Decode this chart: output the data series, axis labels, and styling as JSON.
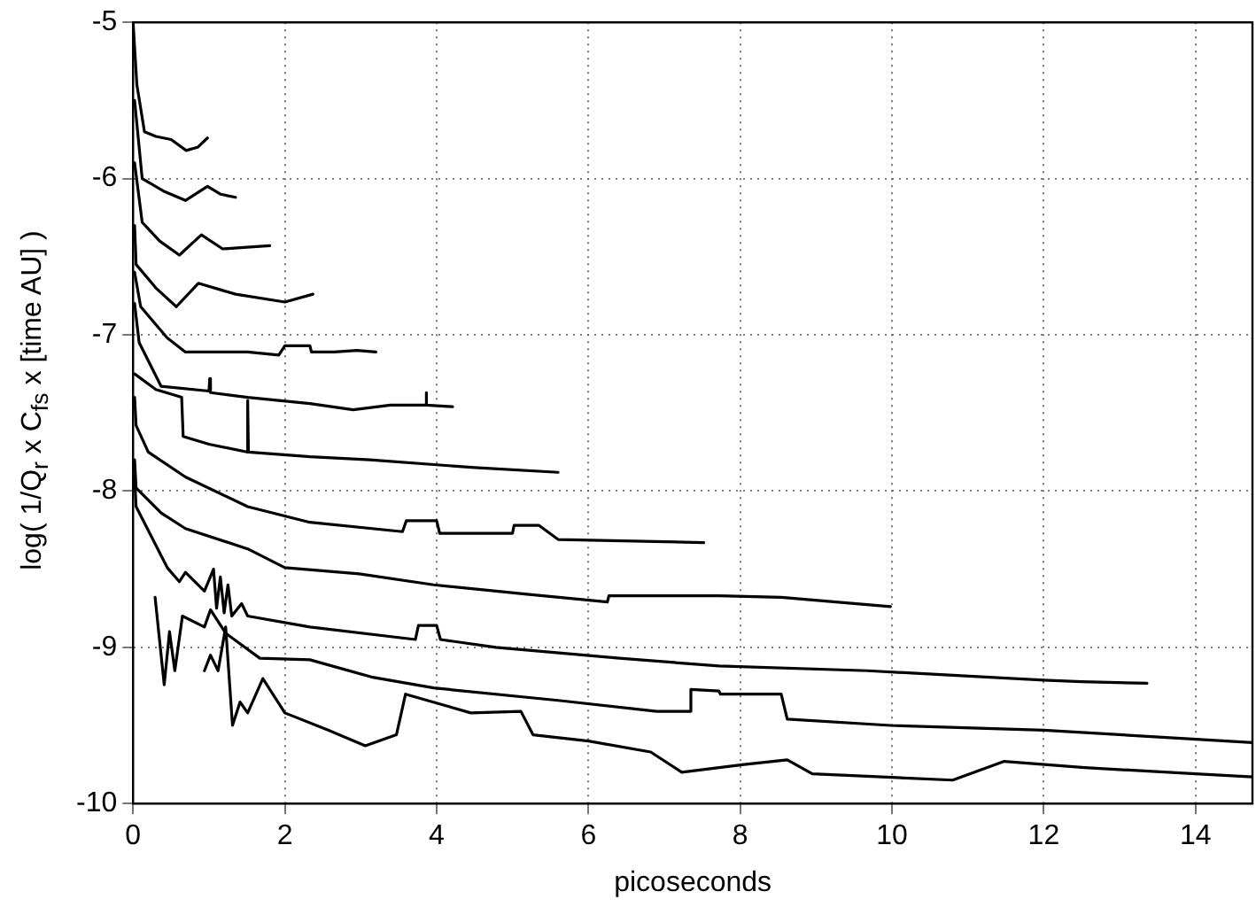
{
  "chart_data": {
    "type": "line",
    "xlabel": "picoseconds",
    "ylabel": "log( 1/Q$_{r}$ x C$_{fs}$  x  [time AU] )",
    "xlim": [
      0,
      14.75
    ],
    "xticks": [
      0,
      2,
      4,
      6,
      8,
      10,
      12,
      14
    ],
    "ylim": [
      -10,
      -5
    ],
    "yticks": [
      -10,
      -9,
      -8,
      -7,
      -6,
      -5
    ],
    "grid": true,
    "marker": "none",
    "line_style": "solid",
    "series": [
      {
        "color": "#000000",
        "x": [
          0,
          0.05,
          0.15,
          0.3,
          0.5,
          0.7,
          0.85,
          0.98
        ],
        "values": [
          -5.0,
          -5.4,
          -5.7,
          -5.73,
          -5.75,
          -5.82,
          -5.8,
          -5.74
        ]
      },
      {
        "color": "#000000",
        "x": [
          0.02,
          0.12,
          0.4,
          0.69,
          0.98,
          1.15,
          1.35
        ],
        "values": [
          -5.5,
          -6.0,
          -6.08,
          -6.14,
          -6.05,
          -6.1,
          -6.12
        ]
      },
      {
        "color": "#000000",
        "x": [
          0.02,
          0.12,
          0.35,
          0.61,
          0.9,
          1.18,
          1.5,
          1.8
        ],
        "values": [
          -5.9,
          -6.28,
          -6.4,
          -6.49,
          -6.36,
          -6.45,
          -6.44,
          -6.43
        ]
      },
      {
        "color": "#000000",
        "x": [
          0.02,
          0.04,
          0.3,
          0.57,
          0.86,
          1.35,
          2.0,
          2.37
        ],
        "values": [
          -6.3,
          -6.55,
          -6.7,
          -6.82,
          -6.67,
          -6.74,
          -6.79,
          -6.74
        ]
      },
      {
        "color": "#000000",
        "x": [
          0.02,
          0.1,
          0.45,
          0.69,
          1.51,
          1.92,
          2.0,
          2.33,
          2.35,
          2.65,
          2.95,
          3.2
        ],
        "values": [
          -6.6,
          -6.82,
          -7.02,
          -7.11,
          -7.11,
          -7.13,
          -7.07,
          -7.07,
          -7.11,
          -7.11,
          -7.1,
          -7.11
        ]
      },
      {
        "color": "#000000",
        "x": [
          0.02,
          0.08,
          0.37,
          1.0,
          1.01,
          1.02,
          1.51,
          2.33,
          2.9,
          3.39,
          3.85,
          3.86,
          3.87,
          4.21
        ],
        "values": [
          -6.8,
          -7.05,
          -7.33,
          -7.36,
          -7.28,
          -7.37,
          -7.4,
          -7.44,
          -7.48,
          -7.45,
          -7.45,
          -7.37,
          -7.45,
          -7.46
        ]
      },
      {
        "color": "#000000",
        "x": [
          0.02,
          0.3,
          0.64,
          0.66,
          1.0,
          1.5,
          1.51,
          1.52,
          2.33,
          3.12,
          4.5,
          5.6
        ],
        "values": [
          -7.25,
          -7.35,
          -7.4,
          -7.65,
          -7.7,
          -7.75,
          -7.42,
          -7.75,
          -7.78,
          -7.8,
          -7.85,
          -7.88
        ]
      },
      {
        "color": "#000000",
        "x": [
          0.02,
          0.04,
          0.2,
          0.69,
          1.51,
          2.33,
          3.55,
          3.6,
          4.0,
          4.04,
          5.0,
          5.02,
          5.35,
          5.6,
          7.52
        ],
        "values": [
          -7.4,
          -7.58,
          -7.75,
          -7.91,
          -8.1,
          -8.2,
          -8.26,
          -8.19,
          -8.19,
          -8.27,
          -8.27,
          -8.22,
          -8.22,
          -8.31,
          -8.33
        ]
      },
      {
        "color": "#000000",
        "x": [
          0.02,
          0.04,
          0.37,
          0.69,
          1.51,
          2.0,
          2.98,
          3.96,
          5.19,
          6.25,
          6.27,
          7.72,
          8.54,
          9.98
        ],
        "values": [
          -7.8,
          -7.98,
          -8.14,
          -8.24,
          -8.37,
          -8.49,
          -8.53,
          -8.6,
          -8.66,
          -8.71,
          -8.67,
          -8.67,
          -8.68,
          -8.74
        ]
      },
      {
        "color": "#000000",
        "x": [
          0.02,
          0.04,
          0.45,
          0.61,
          0.69,
          0.94,
          1.06,
          1.1,
          1.15,
          1.2,
          1.25,
          1.3,
          1.43,
          1.51,
          2.33,
          3.72,
          3.76,
          4.0,
          4.05,
          4.78,
          6.41,
          7.72,
          9.68,
          12.0,
          12.5,
          13.36
        ],
        "values": [
          -7.9,
          -8.1,
          -8.49,
          -8.58,
          -8.52,
          -8.64,
          -8.5,
          -8.75,
          -8.55,
          -8.78,
          -8.6,
          -8.8,
          -8.72,
          -8.8,
          -8.87,
          -8.95,
          -8.86,
          -8.86,
          -8.95,
          -9.0,
          -9.07,
          -9.12,
          -9.15,
          -9.21,
          -9.22,
          -9.23
        ]
      },
      {
        "color": "#000000",
        "x": [
          0.29,
          0.41,
          0.48,
          0.55,
          0.65,
          0.94,
          1.02,
          1.22,
          1.67,
          2.33,
          3.14,
          3.96,
          5.6,
          6.9,
          7.33,
          7.35,
          7.72,
          7.74,
          8.54,
          8.62,
          9.98,
          12.0,
          14.75
        ],
        "values": [
          -8.68,
          -9.24,
          -8.9,
          -9.15,
          -8.8,
          -8.87,
          -8.76,
          -8.91,
          -9.07,
          -9.08,
          -9.19,
          -9.26,
          -9.34,
          -9.41,
          -9.41,
          -9.27,
          -9.28,
          -9.3,
          -9.3,
          -9.46,
          -9.5,
          -9.53,
          -9.61
        ]
      },
      {
        "color": "#000000",
        "x": [
          0.94,
          1.02,
          1.12,
          1.22,
          1.31,
          1.41,
          1.51,
          1.71,
          2.0,
          2.57,
          3.06,
          3.47,
          3.59,
          4.45,
          5.11,
          5.27,
          6.0,
          6.82,
          7.23,
          8.05,
          8.62,
          8.95,
          10.8,
          11.48,
          12.54,
          14.0,
          14.75
        ],
        "values": [
          -9.15,
          -9.05,
          -9.15,
          -8.87,
          -9.5,
          -9.35,
          -9.42,
          -9.2,
          -9.42,
          -9.53,
          -9.63,
          -9.56,
          -9.3,
          -9.42,
          -9.41,
          -9.56,
          -9.6,
          -9.67,
          -9.8,
          -9.75,
          -9.72,
          -9.81,
          -9.85,
          -9.73,
          -9.77,
          -9.81,
          -9.83
        ]
      }
    ]
  }
}
